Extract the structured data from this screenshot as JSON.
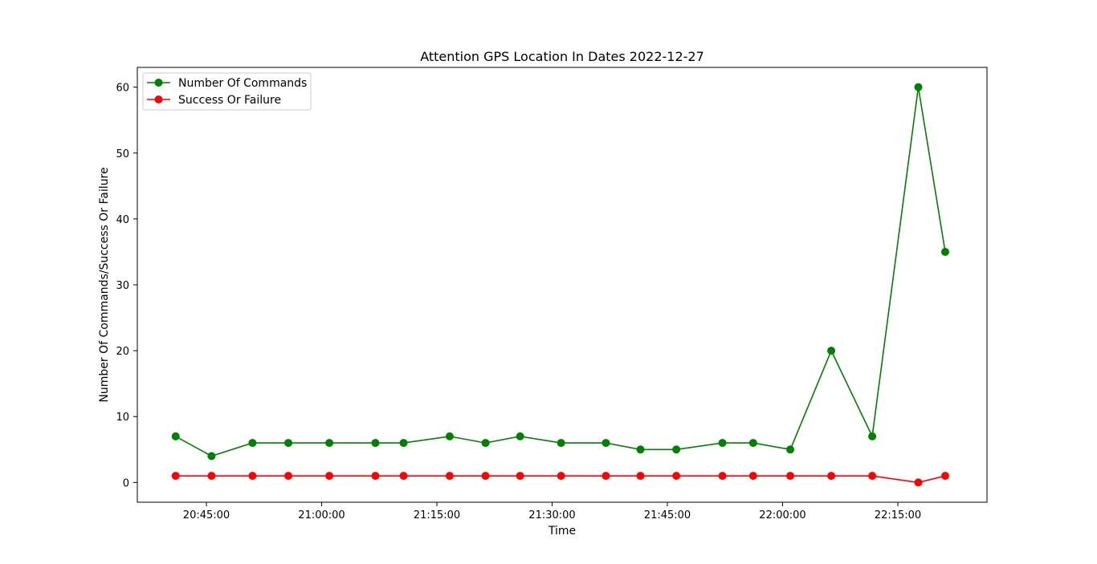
{
  "chart_data": {
    "type": "line",
    "title": "Attention GPS Location In Dates 2022-12-27",
    "xlabel": "Time",
    "ylabel": "Number Of Commands/Success Or Failure",
    "x_tick_labels": [
      "20:45:00",
      "21:00:00",
      "21:15:00",
      "21:30:00",
      "21:45:00",
      "22:00:00",
      "22:15:00"
    ],
    "y_tick_labels": [
      "0",
      "10",
      "20",
      "30",
      "40",
      "50",
      "60"
    ],
    "ylim": [
      -3,
      63
    ],
    "x": [
      "20:41:00",
      "20:45:40",
      "20:51:00",
      "20:55:40",
      "21:01:00",
      "21:07:00",
      "21:10:40",
      "21:16:40",
      "21:21:20",
      "21:25:50",
      "21:31:10",
      "21:37:00",
      "21:41:30",
      "21:46:10",
      "21:52:10",
      "21:56:10",
      "22:01:00",
      "22:06:20",
      "22:11:40",
      "22:17:40",
      "22:21:10"
    ],
    "series": [
      {
        "name": "Number Of Commands",
        "color": "#008000",
        "values": [
          7,
          4,
          6,
          6,
          6,
          6,
          6,
          7,
          6,
          7,
          6,
          6,
          5,
          5,
          6,
          6,
          5,
          20,
          7,
          60,
          35
        ]
      },
      {
        "name": "Success Or Failure",
        "color": "#ff0000",
        "values": [
          1,
          1,
          1,
          1,
          1,
          1,
          1,
          1,
          1,
          1,
          1,
          1,
          1,
          1,
          1,
          1,
          1,
          1,
          1,
          0,
          1
        ]
      }
    ],
    "grid": false,
    "legend_position": "top-left"
  }
}
